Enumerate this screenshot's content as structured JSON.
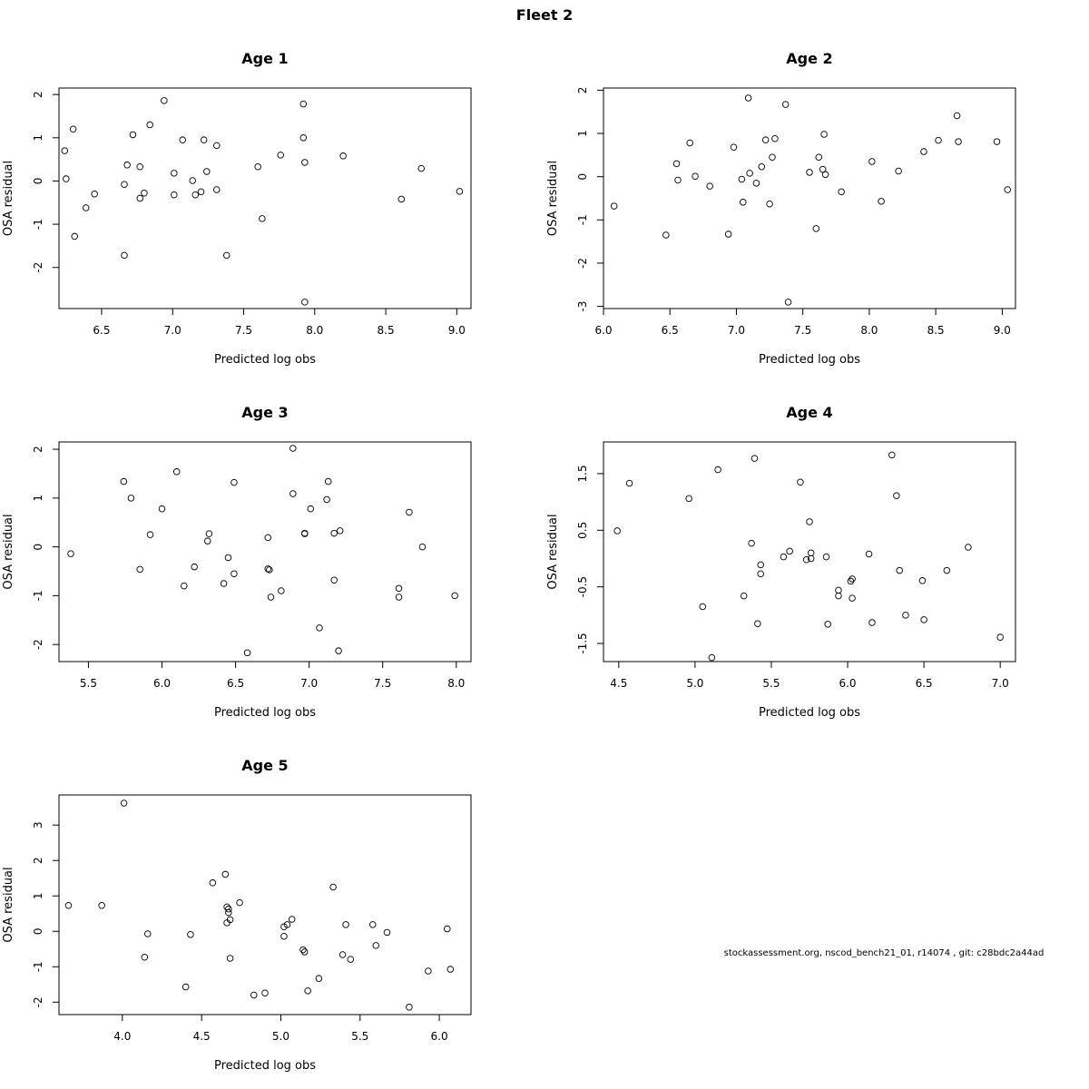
{
  "title": "Fleet 2",
  "footnote": "stockassessment.org, nscod_bench21_01, r14074 , git: c28bdc2a44ad",
  "chart_data": [
    {
      "type": "scatter",
      "title": "Age 1",
      "xlabel": "Predicted log obs",
      "ylabel": "OSA residual",
      "xlim": [
        6.2,
        9.1
      ],
      "ylim": [
        -2.95,
        2.15
      ],
      "xticks": [
        "6.5",
        "7.0",
        "7.5",
        "8.0",
        "8.5",
        "9.0"
      ],
      "yticks": [
        "-2",
        "-1",
        "0",
        "1",
        "2"
      ],
      "x": [
        6.24,
        6.25,
        6.3,
        6.31,
        6.39,
        6.45,
        6.66,
        6.66,
        6.68,
        6.72,
        6.77,
        6.77,
        6.8,
        6.84,
        6.94,
        7.01,
        7.01,
        7.07,
        7.14,
        7.16,
        7.2,
        7.22,
        7.24,
        7.31,
        7.31,
        7.38,
        7.6,
        7.63,
        7.76,
        7.92,
        7.92,
        7.93,
        7.93,
        8.2,
        8.61,
        8.75,
        9.02
      ],
      "y": [
        0.7,
        0.05,
        1.2,
        -1.28,
        -0.62,
        -0.3,
        -0.08,
        -1.72,
        0.37,
        1.07,
        0.33,
        -0.4,
        -0.28,
        1.3,
        1.86,
        -0.32,
        0.18,
        0.95,
        0.01,
        -0.32,
        -0.25,
        0.95,
        0.22,
        0.82,
        -0.2,
        -1.72,
        0.33,
        -0.87,
        0.6,
        1.78,
        1.0,
        0.43,
        -2.8,
        0.58,
        -0.42,
        0.29,
        -0.24
      ]
    },
    {
      "type": "scatter",
      "title": "Age 2",
      "xlabel": "Predicted log obs",
      "ylabel": "OSA residual",
      "xlim": [
        6.0,
        9.1
      ],
      "ylim": [
        -3.05,
        2.05
      ],
      "xticks": [
        "6.0",
        "6.5",
        "7.0",
        "7.5",
        "8.0",
        "8.5",
        "9.0"
      ],
      "yticks": [
        "-3",
        "-2",
        "-1",
        "0",
        "1",
        "2"
      ],
      "x": [
        6.08,
        6.47,
        6.55,
        6.56,
        6.65,
        6.69,
        6.8,
        6.94,
        6.98,
        7.04,
        7.05,
        7.09,
        7.1,
        7.15,
        7.19,
        7.22,
        7.25,
        7.27,
        7.29,
        7.37,
        7.39,
        7.55,
        7.6,
        7.62,
        7.65,
        7.66,
        7.67,
        7.79,
        8.02,
        8.09,
        8.22,
        8.41,
        8.52,
        8.66,
        8.67,
        8.96,
        9.04
      ],
      "y": [
        -0.68,
        -1.35,
        0.3,
        -0.08,
        0.78,
        0.01,
        -0.22,
        -1.33,
        0.68,
        -0.06,
        -0.59,
        1.82,
        0.08,
        -0.15,
        0.23,
        0.85,
        -0.63,
        0.45,
        0.88,
        1.67,
        -2.9,
        0.1,
        -1.2,
        0.45,
        0.17,
        0.98,
        0.05,
        -0.35,
        0.35,
        -0.57,
        0.13,
        0.58,
        0.84,
        1.41,
        0.81,
        0.81,
        -0.3
      ]
    },
    {
      "type": "scatter",
      "title": "Age 3",
      "xlabel": "Predicted log obs",
      "ylabel": "OSA residual",
      "xlim": [
        5.3,
        8.1
      ],
      "ylim": [
        -2.35,
        2.15
      ],
      "xticks": [
        "5.5",
        "6.0",
        "6.5",
        "7.0",
        "7.5",
        "8.0"
      ],
      "yticks": [
        "-2",
        "-1",
        "0",
        "1",
        "2"
      ],
      "x": [
        5.38,
        5.74,
        5.79,
        5.85,
        5.92,
        6.0,
        6.1,
        6.15,
        6.22,
        6.31,
        6.32,
        6.42,
        6.45,
        6.49,
        6.49,
        6.58,
        6.72,
        6.72,
        6.73,
        6.74,
        6.81,
        6.89,
        6.89,
        6.97,
        6.97,
        7.01,
        7.07,
        7.12,
        7.13,
        7.17,
        7.17,
        7.2,
        7.21,
        7.61,
        7.61,
        7.68,
        7.77,
        7.99
      ],
      "y": [
        -0.14,
        1.34,
        1.0,
        -0.46,
        0.25,
        0.78,
        1.54,
        -0.8,
        -0.41,
        0.12,
        0.27,
        -0.75,
        -0.22,
        -0.55,
        1.32,
        -2.17,
        0.19,
        -0.45,
        -0.47,
        -1.03,
        -0.9,
        2.02,
        1.09,
        0.27,
        0.28,
        0.78,
        -1.66,
        0.97,
        1.34,
        -0.68,
        0.28,
        -2.13,
        0.33,
        -1.03,
        -0.85,
        0.71,
        0.0,
        -1.0
      ]
    },
    {
      "type": "scatter",
      "title": "Age 4",
      "xlabel": "Predicted log obs",
      "ylabel": "OSA residual",
      "xlim": [
        4.4,
        7.1
      ],
      "ylim": [
        -1.82,
        2.06
      ],
      "xticks": [
        "4.5",
        "5.0",
        "5.5",
        "6.0",
        "6.5",
        "7.0"
      ],
      "yticks": [
        "-1.5",
        "-0.5",
        "0.5",
        "1.5"
      ],
      "x": [
        4.49,
        4.57,
        4.96,
        5.05,
        5.11,
        5.15,
        5.32,
        5.37,
        5.39,
        5.41,
        5.43,
        5.43,
        5.58,
        5.62,
        5.69,
        5.73,
        5.75,
        5.76,
        5.76,
        5.86,
        5.87,
        5.94,
        5.94,
        6.02,
        6.03,
        6.03,
        6.14,
        6.16,
        6.29,
        6.32,
        6.34,
        6.38,
        6.49,
        6.5,
        6.65,
        6.79,
        7.0
      ],
      "y": [
        0.49,
        1.33,
        1.06,
        -0.85,
        -1.75,
        1.57,
        -0.66,
        0.27,
        1.77,
        -1.15,
        -0.27,
        -0.11,
        0.03,
        0.13,
        1.35,
        -0.02,
        0.65,
        0.0,
        0.1,
        0.03,
        -1.16,
        -0.56,
        -0.66,
        -0.4,
        -0.36,
        -0.7,
        0.08,
        -1.13,
        1.83,
        1.11,
        -0.21,
        -1.0,
        -0.39,
        -1.08,
        -0.21,
        0.2,
        -1.39
      ]
    },
    {
      "type": "scatter",
      "title": "Age 5",
      "xlabel": "Predicted log obs",
      "ylabel": "OSA residual",
      "xlim": [
        3.6,
        6.2
      ],
      "ylim": [
        -2.35,
        3.85
      ],
      "xticks": [
        "4.0",
        "4.5",
        "5.0",
        "5.5",
        "6.0"
      ],
      "yticks": [
        "-2",
        "-1",
        "0",
        "1",
        "2",
        "3"
      ],
      "x": [
        3.66,
        3.87,
        4.01,
        4.14,
        4.16,
        4.4,
        4.43,
        4.57,
        4.65,
        4.66,
        4.66,
        4.67,
        4.67,
        4.68,
        4.68,
        4.74,
        4.83,
        4.9,
        5.02,
        5.02,
        5.04,
        5.07,
        5.14,
        5.15,
        5.17,
        5.24,
        5.33,
        5.39,
        5.41,
        5.44,
        5.58,
        5.6,
        5.67,
        5.81,
        5.93,
        6.05,
        6.07
      ],
      "y": [
        0.73,
        0.73,
        3.62,
        -0.73,
        -0.07,
        -1.57,
        -0.09,
        1.37,
        1.61,
        0.69,
        0.24,
        0.53,
        0.63,
        -0.76,
        0.33,
        0.81,
        -1.8,
        -1.74,
        -0.14,
        0.13,
        0.19,
        0.34,
        -0.52,
        -0.58,
        -1.68,
        -1.33,
        1.25,
        -0.66,
        0.19,
        -0.79,
        0.19,
        -0.4,
        -0.03,
        -2.14,
        -1.12,
        0.07,
        -1.07
      ]
    }
  ]
}
